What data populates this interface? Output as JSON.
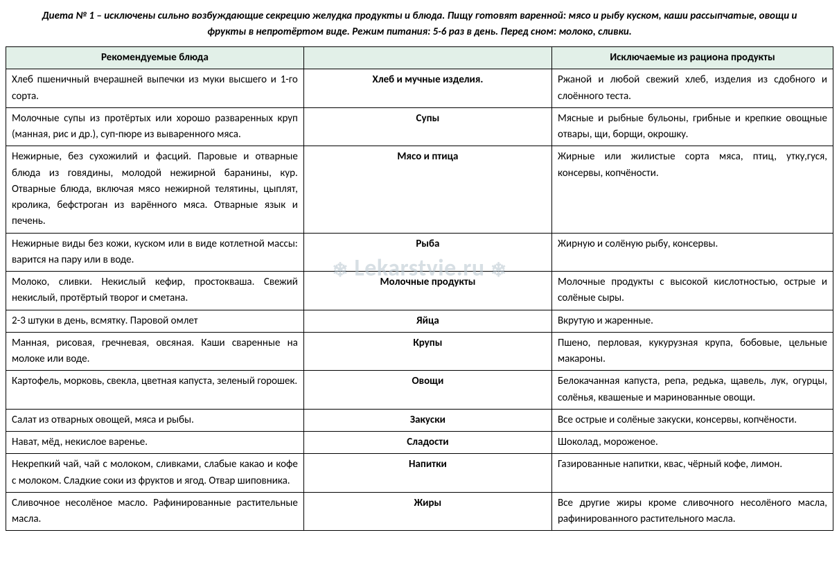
{
  "title": "Диета № 1 – исключены сильно возбуждающие секрецию желудка продукты и блюда. Пищу готовят варенной: мясо и рыбу куском, каши рассыпчатые, овощи и фрукты в непротёртом виде. Режим питания: 5-6 раз в день. Перед сном: молоко, сливки.",
  "watermark": "Lekarstvie.ru",
  "watermark_deco_left": "❄",
  "watermark_deco_right": "❄",
  "table": {
    "header_bg": "#e2f0e8",
    "border_color": "#000000",
    "columns": [
      "Рекомендуемые блюда",
      "",
      "Исключаемые из рациона продукты"
    ],
    "rows": [
      {
        "recommended": "Хлеб пшеничный вчерашней выпечки из муки высшего и 1-го сорта.",
        "category": "Хлеб и мучные изделия.",
        "excluded": "Ржаной и любой свежий хлеб, изделия из сдобного и слоённого теста."
      },
      {
        "recommended": "Молочные супы из протёртых или хорошо разваренных круп (манная, рис и др.), суп-пюре из вываренного мяса.",
        "category": "Супы",
        "excluded": "Мясные и рыбные бульоны, грибные и крепкие овощные отвары, щи, борщи, окрошку."
      },
      {
        "recommended": "Нежирные, без сухожилий и фасций. Паровые и отварные блюда из говядины, молодой нежирной баранины, кур. Отварные блюда, включая мясо нежирной телятины, цыплят, кролика, бефстроган из варённого мяса. Отварные язык и печень.",
        "category": "Мясо и птица",
        "excluded": "Жирные или жилистые сорта мяса, птиц, утку,гуся, консервы, копчёности."
      },
      {
        "recommended": "Нежирные виды без кожи, куском или в виде котлетной массы: варится на пару или в воде.",
        "category": "Рыба",
        "excluded": "Жирную и солёную рыбу, консервы."
      },
      {
        "recommended": "Молоко, сливки. Некислый кефир, простокваша. Свежий некислый, протёртый творог и сметана.",
        "category": "Молочные продукты",
        "excluded": "Молочные продукты с высокой кислотностью, острые и солёные сыры."
      },
      {
        "recommended": "2-3 штуки в день, всмятку. Паровой омлет",
        "category": "Яйца",
        "excluded": "Вкрутую и жаренные."
      },
      {
        "recommended": "Манная, рисовая, гречневая, овсяная. Каши сваренные на молоке или воде.",
        "category": "Крупы",
        "excluded": "Пшено, перловая, кукурузная крупа, бобовые, цельные макароны."
      },
      {
        "recommended": "Картофель, морковь, свекла, цветная капуста, зеленый горошек.",
        "category": "Овощи",
        "excluded": "Белокачанная капуста, репа, редька, щавель, лук, огурцы, солёнья, квашеные и маринованные овощи."
      },
      {
        "recommended": "Салат из отварных овощей, мяса и рыбы.",
        "category": "Закуски",
        "excluded": "Все острые и солёные закуски, консервы, копчёности."
      },
      {
        "recommended": "Нават, мёд, некислое варенье.",
        "category": "Сладости",
        "excluded": "Шоколад, мороженое."
      },
      {
        "recommended": "Некрепкий чай, чай с молоком, сливками, слабые какао и кофе с молоком. Сладкие соки из фруктов и ягод. Отвар шиповника.",
        "category": "Напитки",
        "excluded": "Газированные напитки, квас, чёрный кофе, лимон."
      },
      {
        "recommended": "Сливочное несолёное масло. Рафинированные растительные масла.",
        "category": "Жиры",
        "excluded": "Все другие жиры кроме сливочного несолёного масла, рафинированного растительного масла."
      }
    ]
  }
}
